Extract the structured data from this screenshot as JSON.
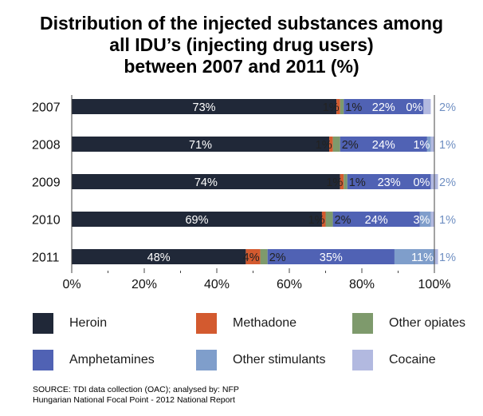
{
  "chart_data": {
    "type": "bar",
    "orientation": "horizontal",
    "stacked": true,
    "title_lines": [
      "Distribution of the injected substances among",
      "all IDU’s (injecting drug users)",
      "between 2007 and 2011 (%)"
    ],
    "categories": [
      "2007",
      "2008",
      "2009",
      "2010",
      "2011"
    ],
    "series": [
      {
        "name": "Heroin",
        "color": "#202838",
        "values": [
          73,
          71,
          74,
          69,
          48
        ]
      },
      {
        "name": "Methadone",
        "color": "#d35a2f",
        "values": [
          1,
          1,
          1,
          1,
          4
        ]
      },
      {
        "name": "Other opiates",
        "color": "#7e9a6c",
        "values": [
          1,
          2,
          1,
          2,
          2
        ]
      },
      {
        "name": "Amphetamines",
        "color": "#5062b4",
        "values": [
          22,
          24,
          23,
          24,
          35
        ]
      },
      {
        "name": "Other stimulants",
        "color": "#7f9ecb",
        "values": [
          0,
          1,
          0,
          3,
          11
        ]
      },
      {
        "name": "Cocaine",
        "color": "#b2b9e0",
        "values": [
          2,
          1,
          2,
          1,
          1
        ]
      }
    ],
    "xlim": [
      0,
      100
    ],
    "x_ticks": [
      0,
      20,
      40,
      60,
      80,
      100
    ],
    "x_tick_suffix": "%",
    "value_suffix": "%",
    "grid": false,
    "legend_position": "bottom"
  },
  "source_lines": [
    "SOURCE: TDI data collection (OAC); analysed by: NFP",
    "Hungarian National Focal Point - 2012 National Report"
  ]
}
